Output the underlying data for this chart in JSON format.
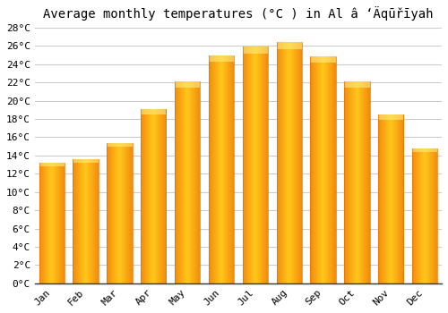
{
  "title": "Average monthly temperatures (°C ) in Al â ‘Äqūřīyah",
  "months": [
    "Jan",
    "Feb",
    "Mar",
    "Apr",
    "May",
    "Jun",
    "Jul",
    "Aug",
    "Sep",
    "Oct",
    "Nov",
    "Dec"
  ],
  "values": [
    13.2,
    13.6,
    15.4,
    19.1,
    22.1,
    25.0,
    25.9,
    26.4,
    24.9,
    22.1,
    18.5,
    14.8
  ],
  "bar_color_center": "#FFB800",
  "bar_color_edge": "#FF8C00",
  "bar_color_top": "#FFD966",
  "background_color": "#ffffff",
  "grid_color": "#cccccc",
  "ylim": [
    0,
    28
  ],
  "ytick_step": 2,
  "title_fontsize": 10,
  "tick_fontsize": 8,
  "figsize": [
    5.0,
    3.5
  ],
  "dpi": 100
}
